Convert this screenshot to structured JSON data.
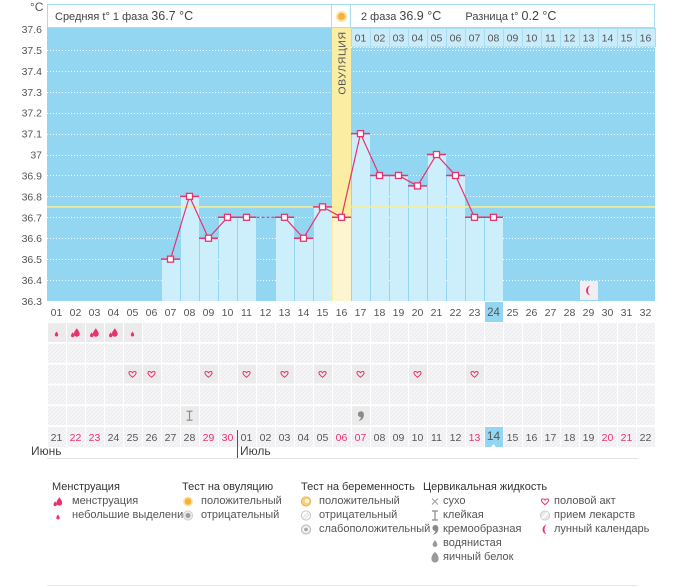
{
  "header": {
    "phase1_label": "Средняя t° 1 фаза",
    "phase1_value": "36.7 °C",
    "phase2_label": "2 фаза",
    "phase2_value": "36.9 °C",
    "diff_label": "Разница t°",
    "diff_value": "0.2 °C"
  },
  "chart_data": {
    "type": "line",
    "ylabel": "°C",
    "ylim": [
      36.3,
      37.6
    ],
    "yticks": [
      37.6,
      37.5,
      37.4,
      37.3,
      37.2,
      37.1,
      37.0,
      36.9,
      36.8,
      36.7,
      36.6,
      36.5,
      36.4,
      36.3
    ],
    "ytick_labels": [
      "37.6",
      "37.5",
      "37.4",
      "37.3",
      "37.2",
      "37.1",
      "37",
      "36.9",
      "36.8",
      "36.7",
      "36.6",
      "36.5",
      "36.4",
      "36.3"
    ],
    "grid": true,
    "x": [
      "01",
      "02",
      "03",
      "04",
      "05",
      "06",
      "07",
      "08",
      "09",
      "10",
      "11",
      "12",
      "13",
      "14",
      "15",
      "16",
      "17",
      "18",
      "19",
      "20",
      "21",
      "22",
      "23",
      "24",
      "25",
      "26",
      "27",
      "28",
      "29",
      "30",
      "31",
      "32"
    ],
    "values": [
      null,
      null,
      null,
      null,
      null,
      null,
      36.5,
      36.8,
      36.6,
      36.7,
      36.7,
      null,
      36.7,
      36.6,
      36.75,
      36.7,
      37.1,
      36.9,
      36.9,
      36.85,
      37.0,
      36.9,
      36.7,
      36.7,
      null,
      null,
      null,
      null,
      null,
      null,
      null,
      null
    ],
    "coverline": 36.75,
    "ovulation_day": 16,
    "ovulation_label": "ОВУЛЯЦИЯ",
    "phase2_day_labels": [
      "01",
      "02",
      "03",
      "04",
      "05",
      "06",
      "07",
      "08",
      "09",
      "10",
      "11",
      "12",
      "13",
      "14",
      "15",
      "16"
    ],
    "highlighted_day": 24,
    "moon_day": 29
  },
  "calendar": {
    "today_day": 24,
    "dates": [
      {
        "d": "21",
        "red": false
      },
      {
        "d": "22",
        "red": true
      },
      {
        "d": "23",
        "red": true
      },
      {
        "d": "24",
        "red": false
      },
      {
        "d": "25",
        "red": false
      },
      {
        "d": "26",
        "red": false
      },
      {
        "d": "27",
        "red": false
      },
      {
        "d": "28",
        "red": false
      },
      {
        "d": "29",
        "red": true
      },
      {
        "d": "30",
        "red": true
      },
      {
        "d": "01",
        "red": false
      },
      {
        "d": "02",
        "red": false
      },
      {
        "d": "03",
        "red": false
      },
      {
        "d": "04",
        "red": false
      },
      {
        "d": "05",
        "red": false
      },
      {
        "d": "06",
        "red": true
      },
      {
        "d": "07",
        "red": true
      },
      {
        "d": "08",
        "red": false
      },
      {
        "d": "09",
        "red": false
      },
      {
        "d": "10",
        "red": false
      },
      {
        "d": "11",
        "red": false
      },
      {
        "d": "12",
        "red": false
      },
      {
        "d": "13",
        "red": true
      },
      {
        "d": "14",
        "red": false
      },
      {
        "d": "15",
        "red": false
      },
      {
        "d": "16",
        "red": false
      },
      {
        "d": "17",
        "red": false
      },
      {
        "d": "18",
        "red": false
      },
      {
        "d": "19",
        "red": false
      },
      {
        "d": "20",
        "red": true
      },
      {
        "d": "21",
        "red": true
      },
      {
        "d": "22",
        "red": false
      }
    ],
    "months": [
      {
        "label": "Июнь",
        "start_day": 1
      },
      {
        "label": "Июль",
        "start_day": 11
      }
    ],
    "rows": [
      [
        {
          "day": 1,
          "icon": "small-drop"
        },
        {
          "day": 2,
          "icon": "heavy-drop"
        },
        {
          "day": 3,
          "icon": "heavy-drop"
        },
        {
          "day": 4,
          "icon": "heavy-drop"
        },
        {
          "day": 5,
          "icon": "small-drop"
        }
      ],
      [],
      [
        {
          "day": 5,
          "icon": "heart"
        },
        {
          "day": 6,
          "icon": "heart"
        },
        {
          "day": 9,
          "icon": "heart"
        },
        {
          "day": 11,
          "icon": "heart"
        },
        {
          "day": 13,
          "icon": "heart"
        },
        {
          "day": 15,
          "icon": "heart"
        },
        {
          "day": 17,
          "icon": "heart"
        },
        {
          "day": 20,
          "icon": "heart"
        },
        {
          "day": 23,
          "icon": "heart"
        }
      ],
      [],
      [
        {
          "day": 8,
          "icon": "sticky"
        },
        {
          "day": 17,
          "icon": "creamy"
        }
      ]
    ]
  },
  "legend": {
    "groups": [
      {
        "title": "Менструация",
        "items": [
          {
            "icon": "heavy-drop",
            "label": "менструация"
          },
          {
            "icon": "small-drop",
            "label": "небольшие выделения"
          }
        ]
      },
      {
        "title": "Тест на овуляцию",
        "items": [
          {
            "icon": "ovulation-positive",
            "label": "положительный"
          },
          {
            "icon": "ovulation-negative",
            "label": "отрицательный"
          }
        ]
      },
      {
        "title": "Тест на беременность",
        "items": [
          {
            "icon": "pregnancy-positive",
            "label": "положительный"
          },
          {
            "icon": "pregnancy-negative",
            "label": "отрицательный"
          },
          {
            "icon": "pregnancy-weak",
            "label": "слабоположительный"
          }
        ]
      },
      {
        "title": "Цервикальная жидкость",
        "items": [
          {
            "icon": "dry",
            "label": "сухо"
          },
          {
            "icon": "sticky",
            "label": "клейкая"
          },
          {
            "icon": "creamy",
            "label": "кремообразная"
          },
          {
            "icon": "watery",
            "label": "водянистая"
          },
          {
            "icon": "egg-white",
            "label": "яичный белок"
          }
        ]
      },
      {
        "items": [
          {
            "icon": "heart",
            "label": "половой акт"
          },
          {
            "icon": "pill",
            "label": "прием лекарств"
          },
          {
            "icon": "moon",
            "label": "лунный календарь"
          }
        ]
      }
    ]
  },
  "colors": {
    "accent": "#e8336e",
    "plot_bg": "#93d6f1",
    "bar": "#cdeefb",
    "ovulation_band": "#fbeda2",
    "ovulation_bar": "#fdf5cf",
    "coverline": "#f4ef9c",
    "phase2_row": "#c9ebfa",
    "border": "#a8dcf1",
    "today": "#93d6f1",
    "cell_bg": "#f5f5f7",
    "cell_hatch": "#ececef",
    "cell_filled": "#ebebec",
    "moon_cell": "#f1eef3",
    "text": "#555555"
  }
}
